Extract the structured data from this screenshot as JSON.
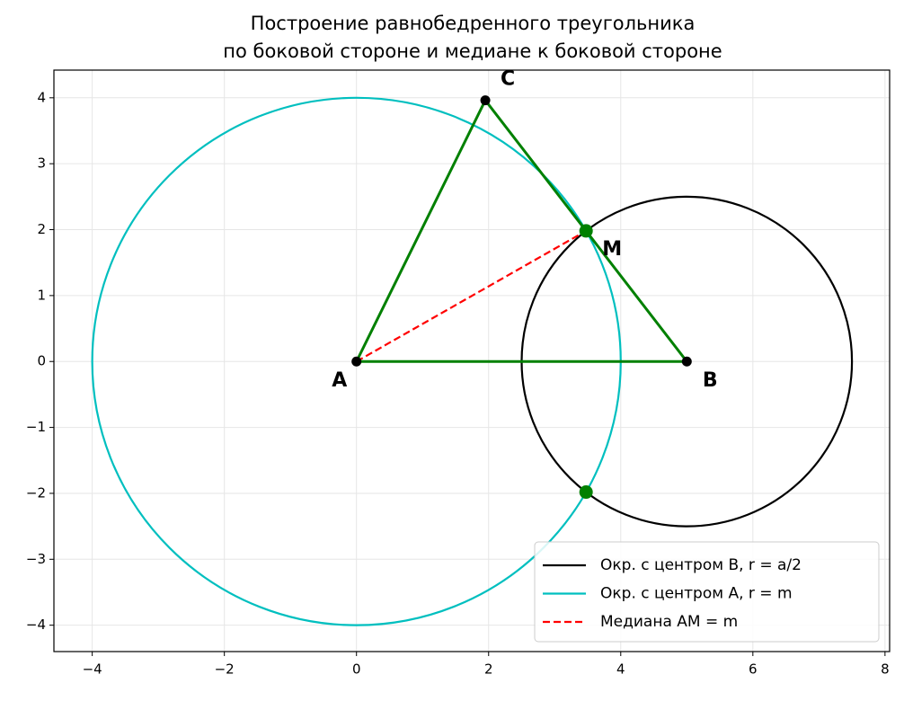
{
  "chart_data": {
    "type": "geometry",
    "title": [
      "Построение равнобедренного треугольника",
      "по боковой стороне и медиане к боковой стороне"
    ],
    "xlim": [
      -4.58,
      8.07
    ],
    "ylim": [
      -4.4,
      4.42
    ],
    "xticks": [
      {
        "value": -4,
        "label": "−4"
      },
      {
        "value": -2,
        "label": "−2"
      },
      0,
      2,
      4,
      6,
      8
    ],
    "yticks": [
      {
        "value": -4,
        "label": "−4"
      },
      {
        "value": -3,
        "label": "−3"
      },
      {
        "value": -2,
        "label": "−2"
      },
      {
        "value": -1,
        "label": "−1"
      },
      0,
      1,
      2,
      3,
      4
    ],
    "grid": true,
    "legend": "lower right",
    "series": [
      {
        "name": "Окр. с центром B, r = a/2",
        "color": "#000000",
        "shape": "circle",
        "center": [
          5,
          0
        ],
        "radius": 2.5
      },
      {
        "name": "Окр. с центром A, r = m",
        "color": "#00bfbf",
        "shape": "circle",
        "center": [
          0,
          0
        ],
        "radius": 4
      },
      {
        "name": "Медиана AM = m",
        "color": "#ff0000",
        "shape": "dashed",
        "x": [
          0,
          3.475
        ],
        "y": [
          0,
          1.981
        ]
      }
    ],
    "triangle": {
      "color": "#008000",
      "x": [
        0,
        5,
        1.95,
        0
      ],
      "y": [
        0,
        0,
        3.962,
        0
      ]
    },
    "points": [
      {
        "label": "A",
        "x": 0,
        "y": 0,
        "color": "#000000"
      },
      {
        "label": "B",
        "x": 5,
        "y": 0,
        "color": "#000000"
      },
      {
        "label": "C",
        "x": 1.95,
        "y": 3.962,
        "color": "#000000"
      },
      {
        "label": "M",
        "x": 3.475,
        "y": 1.981,
        "color": "#008000"
      }
    ],
    "intersections": {
      "color": "#008000",
      "x": [
        3.475,
        3.475
      ],
      "y": [
        1.981,
        -1.981
      ]
    }
  }
}
